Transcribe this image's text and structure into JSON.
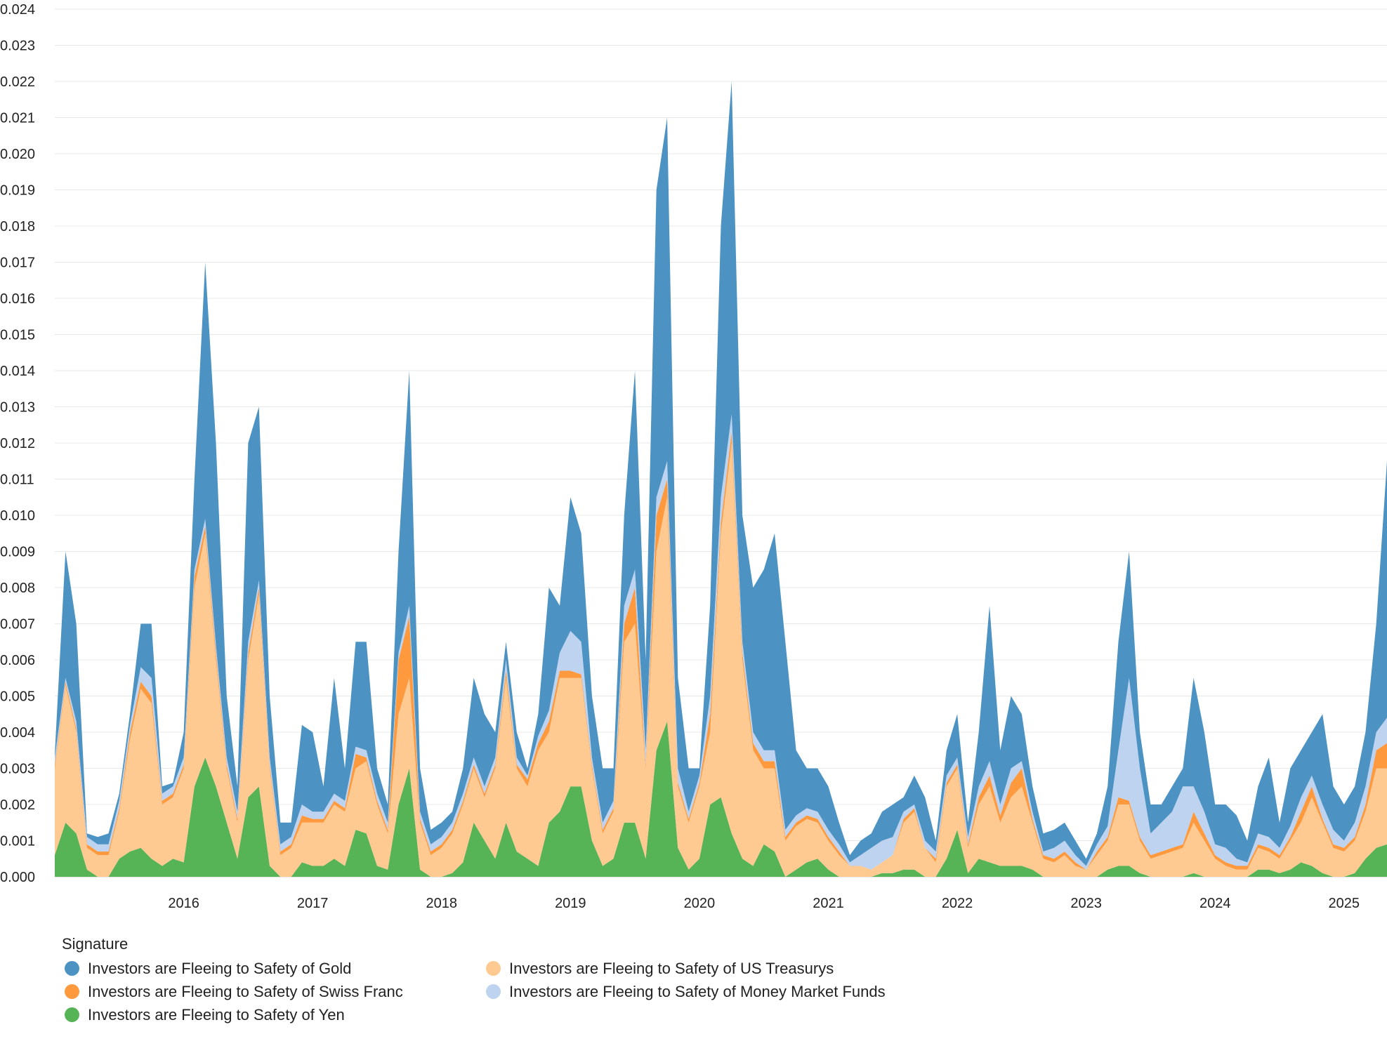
{
  "chart_data": {
    "type": "area",
    "stacked": true,
    "title": "",
    "xlabel": "",
    "ylabel": "",
    "ylim": [
      0,
      0.024
    ],
    "xlim": [
      "2015-01",
      "2025-05"
    ],
    "grid": true,
    "legend_placement": "bottom-left",
    "legend_title": "Signature",
    "y_ticks": [
      "0.000",
      "0.001",
      "0.002",
      "0.003",
      "0.004",
      "0.005",
      "0.006",
      "0.007",
      "0.008",
      "0.009",
      "0.010",
      "0.011",
      "0.012",
      "0.013",
      "0.014",
      "0.015",
      "0.016",
      "0.017",
      "0.018",
      "0.019",
      "0.020",
      "0.021",
      "0.022",
      "0.023",
      "0.024"
    ],
    "x_ticks": [
      "2016",
      "2017",
      "2018",
      "2019",
      "2020",
      "2021",
      "2022",
      "2023",
      "2024",
      "2025"
    ],
    "x": [
      "2015-01",
      "2015-02",
      "2015-03",
      "2015-04",
      "2015-05",
      "2015-06",
      "2015-07",
      "2015-08",
      "2015-09",
      "2015-10",
      "2015-11",
      "2015-12",
      "2016-01",
      "2016-02",
      "2016-03",
      "2016-04",
      "2016-05",
      "2016-06",
      "2016-07",
      "2016-08",
      "2016-09",
      "2016-10",
      "2016-11",
      "2016-12",
      "2017-01",
      "2017-02",
      "2017-03",
      "2017-04",
      "2017-05",
      "2017-06",
      "2017-07",
      "2017-08",
      "2017-09",
      "2017-10",
      "2017-11",
      "2017-12",
      "2018-01",
      "2018-02",
      "2018-03",
      "2018-04",
      "2018-05",
      "2018-06",
      "2018-07",
      "2018-08",
      "2018-09",
      "2018-10",
      "2018-11",
      "2018-12",
      "2019-01",
      "2019-02",
      "2019-03",
      "2019-04",
      "2019-05",
      "2019-06",
      "2019-07",
      "2019-08",
      "2019-09",
      "2019-10",
      "2019-11",
      "2019-12",
      "2020-01",
      "2020-02",
      "2020-03",
      "2020-04",
      "2020-05",
      "2020-06",
      "2020-07",
      "2020-08",
      "2020-09",
      "2020-10",
      "2020-11",
      "2020-12",
      "2021-01",
      "2021-02",
      "2021-03",
      "2021-04",
      "2021-05",
      "2021-06",
      "2021-07",
      "2021-08",
      "2021-09",
      "2021-10",
      "2021-11",
      "2021-12",
      "2022-01",
      "2022-02",
      "2022-03",
      "2022-04",
      "2022-05",
      "2022-06",
      "2022-07",
      "2022-08",
      "2022-09",
      "2022-10",
      "2022-11",
      "2022-12",
      "2023-01",
      "2023-02",
      "2023-03",
      "2023-04",
      "2023-05",
      "2023-06",
      "2023-07",
      "2023-08",
      "2023-09",
      "2023-10",
      "2023-11",
      "2023-12",
      "2024-01",
      "2024-02",
      "2024-03",
      "2024-04",
      "2024-05",
      "2024-06",
      "2024-07",
      "2024-08",
      "2024-09",
      "2024-10",
      "2024-11",
      "2024-12",
      "2025-01",
      "2025-02",
      "2025-03",
      "2025-04",
      "2025-05"
    ],
    "series": [
      {
        "name": "Investors are Fleeing to Safety of Yen",
        "color": "#56b356",
        "values": [
          0.0006,
          0.0015,
          0.0012,
          0.0002,
          0,
          0,
          0.0005,
          0.0007,
          0.0008,
          0.0005,
          0.0003,
          0.0005,
          0.0004,
          0.0025,
          0.0033,
          0.0025,
          0.0015,
          0.0005,
          0.0022,
          0.0025,
          0.0003,
          0,
          0,
          0.0004,
          0.0003,
          0.0003,
          0.0005,
          0.0003,
          0.0013,
          0.0012,
          0.0003,
          0.0002,
          0.002,
          0.003,
          0.0002,
          0,
          0,
          0.0001,
          0.0004,
          0.0015,
          0.001,
          0.0005,
          0.0015,
          0.0007,
          0.0005,
          0.0003,
          0.0015,
          0.0018,
          0.0025,
          0.0025,
          0.001,
          0.0003,
          0.0005,
          0.0015,
          0.0015,
          0.0005,
          0.0035,
          0.0043,
          0.0008,
          0.0002,
          0.0005,
          0.002,
          0.0022,
          0.0012,
          0.0005,
          0.0003,
          0.0009,
          0.0007,
          0,
          0.0002,
          0.0004,
          0.0005,
          0.0002,
          0,
          0,
          0,
          0,
          0.0001,
          0.0001,
          0.0002,
          0.0002,
          0,
          0,
          0.0005,
          0.0013,
          0.0001,
          0.0005,
          0.0004,
          0.0003,
          0.0003,
          0.0003,
          0.0002,
          0,
          0,
          0,
          0,
          0,
          0,
          0.0002,
          0.0003,
          0.0003,
          0.0001,
          0,
          0,
          0,
          0,
          0.0001,
          0,
          0,
          0,
          0,
          0,
          0.0002,
          0.0002,
          0.0001,
          0.0002,
          0.0004,
          0.0003,
          0.0001,
          0,
          0,
          0.0001,
          0.0005,
          0.0008,
          0.0009
        ]
      },
      {
        "name": "Investors are Fleeing to Safety of US Treasurys",
        "color": "#ffc992",
        "values": [
          0.0024,
          0.0038,
          0.0028,
          0.0006,
          0.0006,
          0.0006,
          0.0013,
          0.0031,
          0.0044,
          0.0043,
          0.0017,
          0.0017,
          0.0026,
          0.0055,
          0.0062,
          0.0035,
          0.0015,
          0.001,
          0.0038,
          0.0053,
          0.0027,
          0.0006,
          0.0008,
          0.0011,
          0.0012,
          0.0012,
          0.0015,
          0.0015,
          0.0017,
          0.002,
          0.0017,
          0.001,
          0.0025,
          0.0025,
          0.0013,
          0.0006,
          0.0008,
          0.0011,
          0.0016,
          0.0015,
          0.0012,
          0.0025,
          0.004,
          0.0023,
          0.002,
          0.0032,
          0.0025,
          0.0037,
          0.003,
          0.003,
          0.002,
          0.0009,
          0.0013,
          0.005,
          0.0055,
          0.0025,
          0.0055,
          0.0062,
          0.0017,
          0.0013,
          0.002,
          0.002,
          0.0073,
          0.0108,
          0.0055,
          0.0032,
          0.0021,
          0.0023,
          0.001,
          0.0012,
          0.0012,
          0.001,
          0.0008,
          0.0006,
          0.0003,
          0.0003,
          0.0002,
          0.0003,
          0.0005,
          0.0013,
          0.0016,
          0.0008,
          0.0004,
          0.002,
          0.0017,
          0.0007,
          0.0015,
          0.0021,
          0.0012,
          0.0019,
          0.0022,
          0.0013,
          0.0005,
          0.0004,
          0.0006,
          0.0003,
          0.0002,
          0.0006,
          0.0008,
          0.0017,
          0.0017,
          0.0009,
          0.0005,
          0.0006,
          0.0007,
          0.0008,
          0.0014,
          0.001,
          0.0005,
          0.0003,
          0.0002,
          0.0002,
          0.0006,
          0.0005,
          0.0004,
          0.0008,
          0.0011,
          0.0019,
          0.0014,
          0.0008,
          0.0007,
          0.0009,
          0.0013,
          0.0022,
          0.0021
        ]
      },
      {
        "name": "Investors are Fleeing to Safety of Swiss Franc",
        "color": "#ff993e",
        "values": [
          0.0001,
          0.0001,
          0.0001,
          0.0001,
          0.0001,
          0.0001,
          0.0001,
          0.0002,
          0.0002,
          0.0002,
          0.0001,
          0.0001,
          0.0001,
          0.0003,
          0.0002,
          0.0002,
          0.0001,
          0.0001,
          0.0002,
          0.0002,
          0.0001,
          0.0001,
          0.0001,
          0.0002,
          0.0001,
          0.0001,
          0.0001,
          0.0001,
          0.0004,
          0.0001,
          0.0001,
          0.0001,
          0.0015,
          0.0017,
          0.0001,
          0.0001,
          0.0001,
          0.0001,
          0.0001,
          0.0001,
          0.0001,
          0.0001,
          0.0002,
          0.0001,
          0.0002,
          0.0002,
          0.0003,
          0.0002,
          0.0002,
          0.0001,
          0.0001,
          0.0001,
          0.0001,
          0.0005,
          0.001,
          0.0001,
          0.001,
          0.0005,
          0.0001,
          0.0001,
          0.0001,
          0.0005,
          0.0003,
          0.0003,
          0.0002,
          0.0002,
          0.0002,
          0.0002,
          0.0001,
          0.0001,
          0.0001,
          0.0001,
          0.0001,
          0.0001,
          0,
          0,
          0,
          0,
          0,
          0.0001,
          0.0001,
          0,
          0.0001,
          0.0001,
          0.0001,
          0.0001,
          0.0002,
          0.0003,
          0.0002,
          0.0004,
          0.0005,
          0.0001,
          0.0001,
          0.0001,
          0.0001,
          0.0001,
          0,
          0.0001,
          0.0001,
          0.0002,
          0.0001,
          0.0001,
          0.0001,
          0.0001,
          0.0001,
          0.0001,
          0.0003,
          0.0002,
          0.0001,
          0.0001,
          0.0001,
          0.0001,
          0.0001,
          0.0001,
          0.0001,
          0.0001,
          0.0003,
          0.0003,
          0.0001,
          0.0001,
          0.0001,
          0.0001,
          0.0002,
          0.0005,
          0.0007
        ]
      },
      {
        "name": "Investors are Fleeing to Safety of Money Market Funds",
        "color": "#bdd3ef",
        "values": [
          0.0002,
          0.0001,
          0.0002,
          0.0002,
          0.0002,
          0.0002,
          0.0002,
          0.0002,
          0.0004,
          0.0005,
          0.0002,
          0.0002,
          0.0002,
          0.0002,
          0.0002,
          0.0002,
          0.0002,
          0.0002,
          0.0003,
          0.0002,
          0.0002,
          0.0002,
          0.0002,
          0.0003,
          0.0002,
          0.0002,
          0.0002,
          0.0002,
          0.0002,
          0.0002,
          0.0002,
          0.0002,
          0.0002,
          0.0003,
          0.0002,
          0.0002,
          0.0002,
          0.0002,
          0.0002,
          0.0002,
          0.0002,
          0.0002,
          0.0003,
          0.0002,
          0.0001,
          0.0002,
          0.0003,
          0.0005,
          0.0011,
          0.0009,
          0.0002,
          0.0002,
          0.0002,
          0.0005,
          0.0005,
          0.0004,
          0.0005,
          0.0005,
          0.0004,
          0.0002,
          0.0002,
          0.0005,
          0.0007,
          0.0005,
          0.0003,
          0.0003,
          0.0003,
          0.0003,
          0.0002,
          0.0002,
          0.0002,
          0.0002,
          0.0002,
          0.0002,
          0.0001,
          0.0003,
          0.0006,
          0.0006,
          0.0005,
          0.0002,
          0.0001,
          0.0002,
          0.0002,
          0.0002,
          0.0002,
          0.0002,
          0.0003,
          0.0004,
          0.0003,
          0.0004,
          0.0002,
          0.0002,
          0.0001,
          0.0003,
          0.0003,
          0.0002,
          0.0001,
          0.0002,
          0.0003,
          0.0013,
          0.0034,
          0.0019,
          0.0006,
          0.0008,
          0.001,
          0.0016,
          0.0007,
          0.0006,
          0.0003,
          0.0004,
          0.0002,
          0.0001,
          0.0003,
          0.0003,
          0.0002,
          0.0003,
          0.0004,
          0.0003,
          0.0004,
          0.0004,
          0.0002,
          0.0004,
          0.0005,
          0.0005,
          0.0007
        ]
      },
      {
        "name": "Investors are Fleeing to Safety of Gold",
        "color": "#4c92c3",
        "values": [
          0.0001,
          0.0035,
          0.0027,
          0.0001,
          0.0002,
          0.0003,
          0.0002,
          0.0003,
          0.0012,
          0.0015,
          0.0002,
          0.0001,
          0.0007,
          0.0025,
          0.0071,
          0.0056,
          0.0017,
          0.0007,
          0.0055,
          0.0048,
          0.0017,
          0.0006,
          0.0004,
          0.0022,
          0.0022,
          0.0007,
          0.0032,
          0.0009,
          0.0029,
          0.003,
          0.0007,
          0.0005,
          0.0028,
          0.0065,
          0.0012,
          0.0004,
          0.0004,
          0.0003,
          0.0007,
          0.0022,
          0.002,
          0.0007,
          0.0005,
          0.0007,
          0.0002,
          0.0006,
          0.0034,
          0.0013,
          0.0037,
          0.003,
          0.0017,
          0.0015,
          0.0009,
          0.0025,
          0.0055,
          0.0025,
          0.0085,
          0.0095,
          0.0025,
          0.0012,
          0.0002,
          0.0025,
          0.0075,
          0.0092,
          0.0035,
          0.004,
          0.005,
          0.006,
          0.0052,
          0.0018,
          0.0011,
          0.0012,
          0.0012,
          0.0006,
          0.0002,
          0.0004,
          0.0004,
          0.0008,
          0.0009,
          0.0004,
          0.0008,
          0.0012,
          0.0003,
          0.0007,
          0.0012,
          0.0004,
          0.0015,
          0.0043,
          0.0015,
          0.002,
          0.0013,
          0.0007,
          0.0005,
          0.0005,
          0.0005,
          0.0004,
          0.0002,
          0.0003,
          0.0011,
          0.003,
          0.0035,
          0.001,
          0.0008,
          0.0005,
          0.0007,
          0.0005,
          0.003,
          0.0022,
          0.0011,
          0.0012,
          0.0012,
          0.0006,
          0.0013,
          0.0022,
          0.0007,
          0.0016,
          0.0013,
          0.0012,
          0.0025,
          0.0012,
          0.001,
          0.001,
          0.0015,
          0.003,
          0.0071
        ]
      }
    ],
    "legend_order": [
      4,
      3,
      2,
      1,
      0
    ]
  }
}
